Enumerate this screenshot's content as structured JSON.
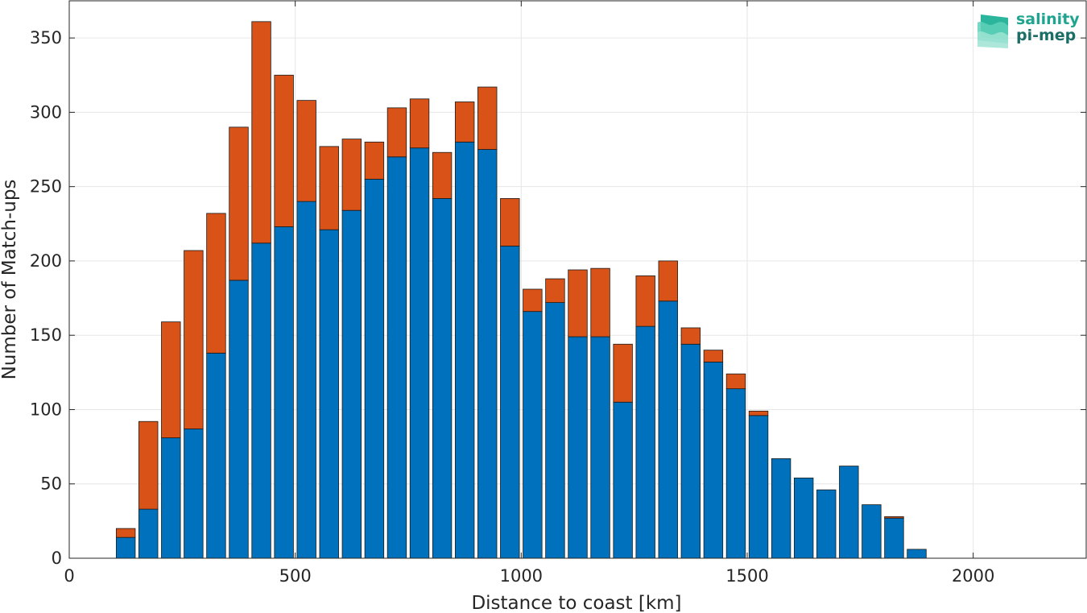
{
  "chart_data": {
    "type": "bar",
    "stacked": true,
    "xlabel": "Distance to coast [km]",
    "ylabel": "Number of Match-ups",
    "xlim": [
      0,
      2250
    ],
    "ylim": [
      0,
      375
    ],
    "xticks": [
      0,
      500,
      1000,
      1500,
      2000
    ],
    "yticks": [
      0,
      50,
      100,
      150,
      200,
      250,
      300,
      350
    ],
    "grid": true,
    "bar_width": 42,
    "x": [
      125,
      175,
      225,
      275,
      325,
      375,
      425,
      475,
      525,
      575,
      625,
      675,
      725,
      775,
      825,
      875,
      925,
      975,
      1025,
      1075,
      1125,
      1175,
      1225,
      1275,
      1325,
      1375,
      1425,
      1475,
      1525,
      1575,
      1625,
      1675,
      1725,
      1775,
      1825,
      1875
    ],
    "series": [
      {
        "color": "#0072bd",
        "values": [
          14,
          33,
          81,
          87,
          138,
          187,
          212,
          223,
          240,
          221,
          234,
          255,
          270,
          276,
          242,
          280,
          275,
          210,
          166,
          172,
          149,
          149,
          105,
          156,
          173,
          144,
          132,
          114,
          96,
          67,
          54,
          46,
          62,
          36,
          27,
          6
        ]
      },
      {
        "color": "#d95319",
        "values": [
          6,
          59,
          78,
          120,
          94,
          103,
          149,
          102,
          68,
          56,
          48,
          25,
          33,
          33,
          31,
          27,
          42,
          32,
          15,
          16,
          45,
          46,
          39,
          34,
          27,
          11,
          8,
          10,
          3,
          0,
          0,
          0,
          0,
          0,
          1,
          0
        ]
      }
    ]
  },
  "logo": {
    "line1": "salinity",
    "line2": "pi-mep"
  }
}
